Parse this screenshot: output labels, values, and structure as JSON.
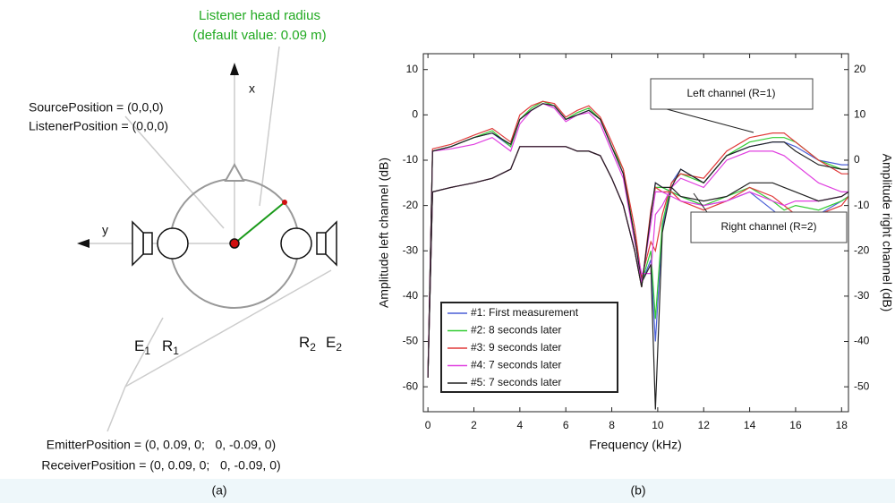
{
  "diagram": {
    "head_radius_label": [
      "Listener head radius",
      "(default value: 0.09 m)"
    ],
    "positions_top": [
      "SourcePosition = (0,0,0)",
      "ListenerPosition = (0,0,0)"
    ],
    "axis_x": "x",
    "axis_y": "y",
    "labels": [
      {
        "letter": "E",
        "index": "1"
      },
      {
        "letter": "R",
        "index": "1"
      },
      {
        "letter": "R",
        "index": "2"
      },
      {
        "letter": "E",
        "index": "2"
      }
    ],
    "positions_bottom": [
      "EmitterPosition = (0, 0.09, 0;   0, -0.09, 0)",
      "ReceiverPosition = (0, 0.09, 0;   0, -0.09, 0)"
    ],
    "caption": "(a)"
  },
  "chart_data": {
    "type": "line",
    "caption": "(b)",
    "x_label": "Frequency (kHz)",
    "y_label": "Amplitude left channel (dB)",
    "y2_label": "Amplitude right channel (dB)",
    "annotations": [
      "Left channel (R=1)",
      "Right channel (R=2)"
    ],
    "xlim": [
      -0.2,
      18.3
    ],
    "xticks": [
      0,
      2,
      4,
      6,
      8,
      10,
      12,
      14,
      16,
      18
    ],
    "ylim": [
      -65.5,
      13.5
    ],
    "yticks": [
      -60,
      -50,
      -40,
      -30,
      -20,
      -10,
      0,
      10
    ],
    "y2lim": [
      -55.5,
      23.5
    ],
    "y2ticks": [
      -50,
      -40,
      -30,
      -20,
      -10,
      0,
      10,
      20
    ],
    "legend": "lower left",
    "grid": false,
    "x": [
      0,
      0.2,
      1,
      2,
      2.8,
      3.6,
      4,
      4.5,
      5,
      5.5,
      6,
      6.5,
      7,
      7.5,
      8,
      8.5,
      9,
      9.3,
      9.7,
      9.9,
      10.2,
      10.6,
      11,
      12,
      13,
      14,
      15,
      15.5,
      16,
      17,
      18,
      18.3
    ],
    "series": [
      {
        "name": "#1: First measurement",
        "color": "#4a5fd6",
        "values": [
          -58,
          -8,
          -7,
          -5,
          -4,
          -7,
          -1,
          1,
          2.5,
          2,
          -1,
          0,
          1,
          -1,
          -7,
          -13,
          -27,
          -37,
          -32,
          -50,
          -25,
          -15,
          -12,
          -15,
          -9,
          -7,
          -6,
          -6,
          -7,
          -10,
          -11,
          -11
        ]
      },
      {
        "name": "#2: 8 seconds later",
        "color": "#33cc33",
        "values": [
          -58,
          -8,
          -7,
          -5,
          -3.5,
          -7,
          -1,
          1.5,
          3,
          2,
          -1,
          0.5,
          1.5,
          -1,
          -7,
          -12,
          -27,
          -37,
          -30,
          -45,
          -24,
          -15,
          -13,
          -15,
          -9,
          -6,
          -5,
          -5,
          -6,
          -10,
          -12,
          -12
        ]
      },
      {
        "name": "#3: 9 seconds later",
        "color": "#e03a3a",
        "values": [
          -58,
          -7.5,
          -6.5,
          -4.5,
          -3,
          -6,
          0,
          2,
          3,
          2.5,
          -0.5,
          1,
          2,
          -0.5,
          -6,
          -12,
          -25,
          -36,
          -28,
          -30,
          -22,
          -15,
          -13,
          -14,
          -8,
          -5,
          -4,
          -4,
          -6,
          -10,
          -13,
          -13
        ]
      },
      {
        "name": "#4: 7 seconds later",
        "color": "#e040e0",
        "values": [
          -58,
          -8,
          -7.5,
          -6.5,
          -5,
          -8,
          -2,
          1,
          2.5,
          1.5,
          -1.5,
          0,
          0.5,
          -2,
          -8,
          -14,
          -28,
          -35,
          -35,
          -22,
          -20,
          -16,
          -14,
          -16,
          -10,
          -8,
          -8,
          -9,
          -11,
          -15,
          -17,
          -17
        ]
      },
      {
        "name": "#5: 7 seconds later",
        "color": "#222222",
        "values": [
          -58,
          -8,
          -7,
          -5,
          -4,
          -6.5,
          -1,
          1,
          2.5,
          2,
          -1,
          0,
          1,
          -1,
          -7,
          -13,
          -27,
          -37,
          -33,
          -65,
          -26,
          -16,
          -12,
          -15,
          -9,
          -7,
          -6,
          -6,
          -8,
          -11,
          -12,
          -12
        ]
      },
      {
        "color": "#4a5fd6",
        "axis": "y2",
        "values": [
          -48,
          -7,
          -6,
          -5,
          -4,
          -2,
          3,
          3,
          3,
          3,
          3,
          2,
          2,
          1,
          -4,
          -10,
          -20,
          -28,
          -12,
          -5,
          -6,
          -7,
          -8,
          -10,
          -9,
          -7,
          -11,
          -13,
          -12,
          -12,
          -9,
          -8
        ]
      },
      {
        "color": "#33cc33",
        "axis": "y2",
        "values": [
          -48,
          -7,
          -6,
          -5,
          -4,
          -2,
          3,
          3,
          3,
          3,
          3,
          2,
          2,
          1,
          -4,
          -10,
          -20,
          -28,
          -12,
          -6,
          -6,
          -7,
          -8,
          -10,
          -8,
          -6,
          -9,
          -11,
          -10,
          -11,
          -9,
          -8
        ]
      },
      {
        "color": "#e03a3a",
        "axis": "y2",
        "values": [
          -48,
          -7,
          -6,
          -5,
          -4,
          -2,
          3,
          3,
          3,
          3,
          3,
          2,
          2,
          1,
          -4,
          -10,
          -20,
          -28,
          -11,
          -6,
          -7,
          -7,
          -9,
          -11,
          -9,
          -6,
          -8,
          -10,
          -12,
          -12,
          -10,
          -8
        ]
      },
      {
        "color": "#e040e0",
        "axis": "y2",
        "values": [
          -48,
          -7,
          -6,
          -5,
          -4,
          -2,
          3,
          3,
          3,
          3,
          3,
          2,
          2,
          1,
          -4,
          -10,
          -20,
          -27,
          -14,
          -7,
          -7,
          -8,
          -9,
          -10,
          -9,
          -7,
          -9,
          -10,
          -9,
          -9,
          -8,
          -7
        ]
      },
      {
        "color": "#222222",
        "axis": "y2",
        "values": [
          -48,
          -7,
          -6,
          -5,
          -4,
          -2,
          3,
          3,
          3,
          3,
          3,
          2,
          2,
          1,
          -4,
          -10,
          -20,
          -28,
          -12,
          -5,
          -6,
          -6,
          -8,
          -9,
          -8,
          -5,
          -5,
          -6,
          -7,
          -9,
          -8,
          -7
        ]
      }
    ]
  }
}
